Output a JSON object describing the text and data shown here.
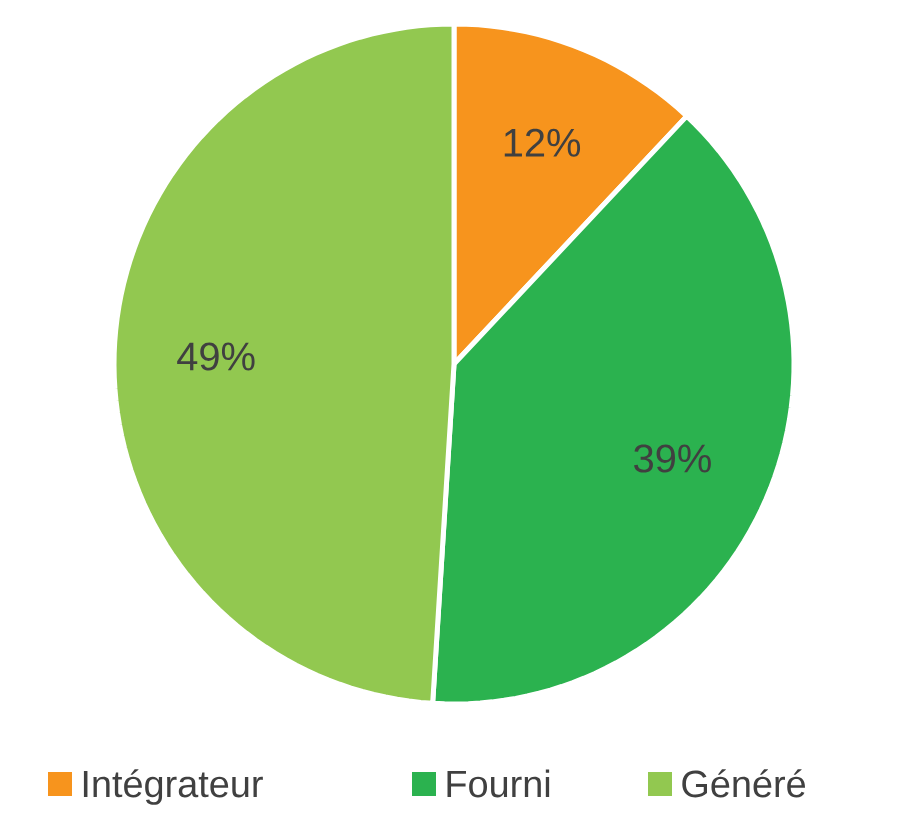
{
  "chart_data": {
    "type": "pie",
    "categories": [
      "Intégrateur",
      "Fourni",
      "Généré"
    ],
    "values": [
      12,
      39,
      49
    ],
    "colors": [
      "#f7941d",
      "#2bb24f",
      "#92c850"
    ],
    "value_labels": [
      "12%",
      "39%",
      "49%"
    ],
    "legend": "bottom"
  }
}
